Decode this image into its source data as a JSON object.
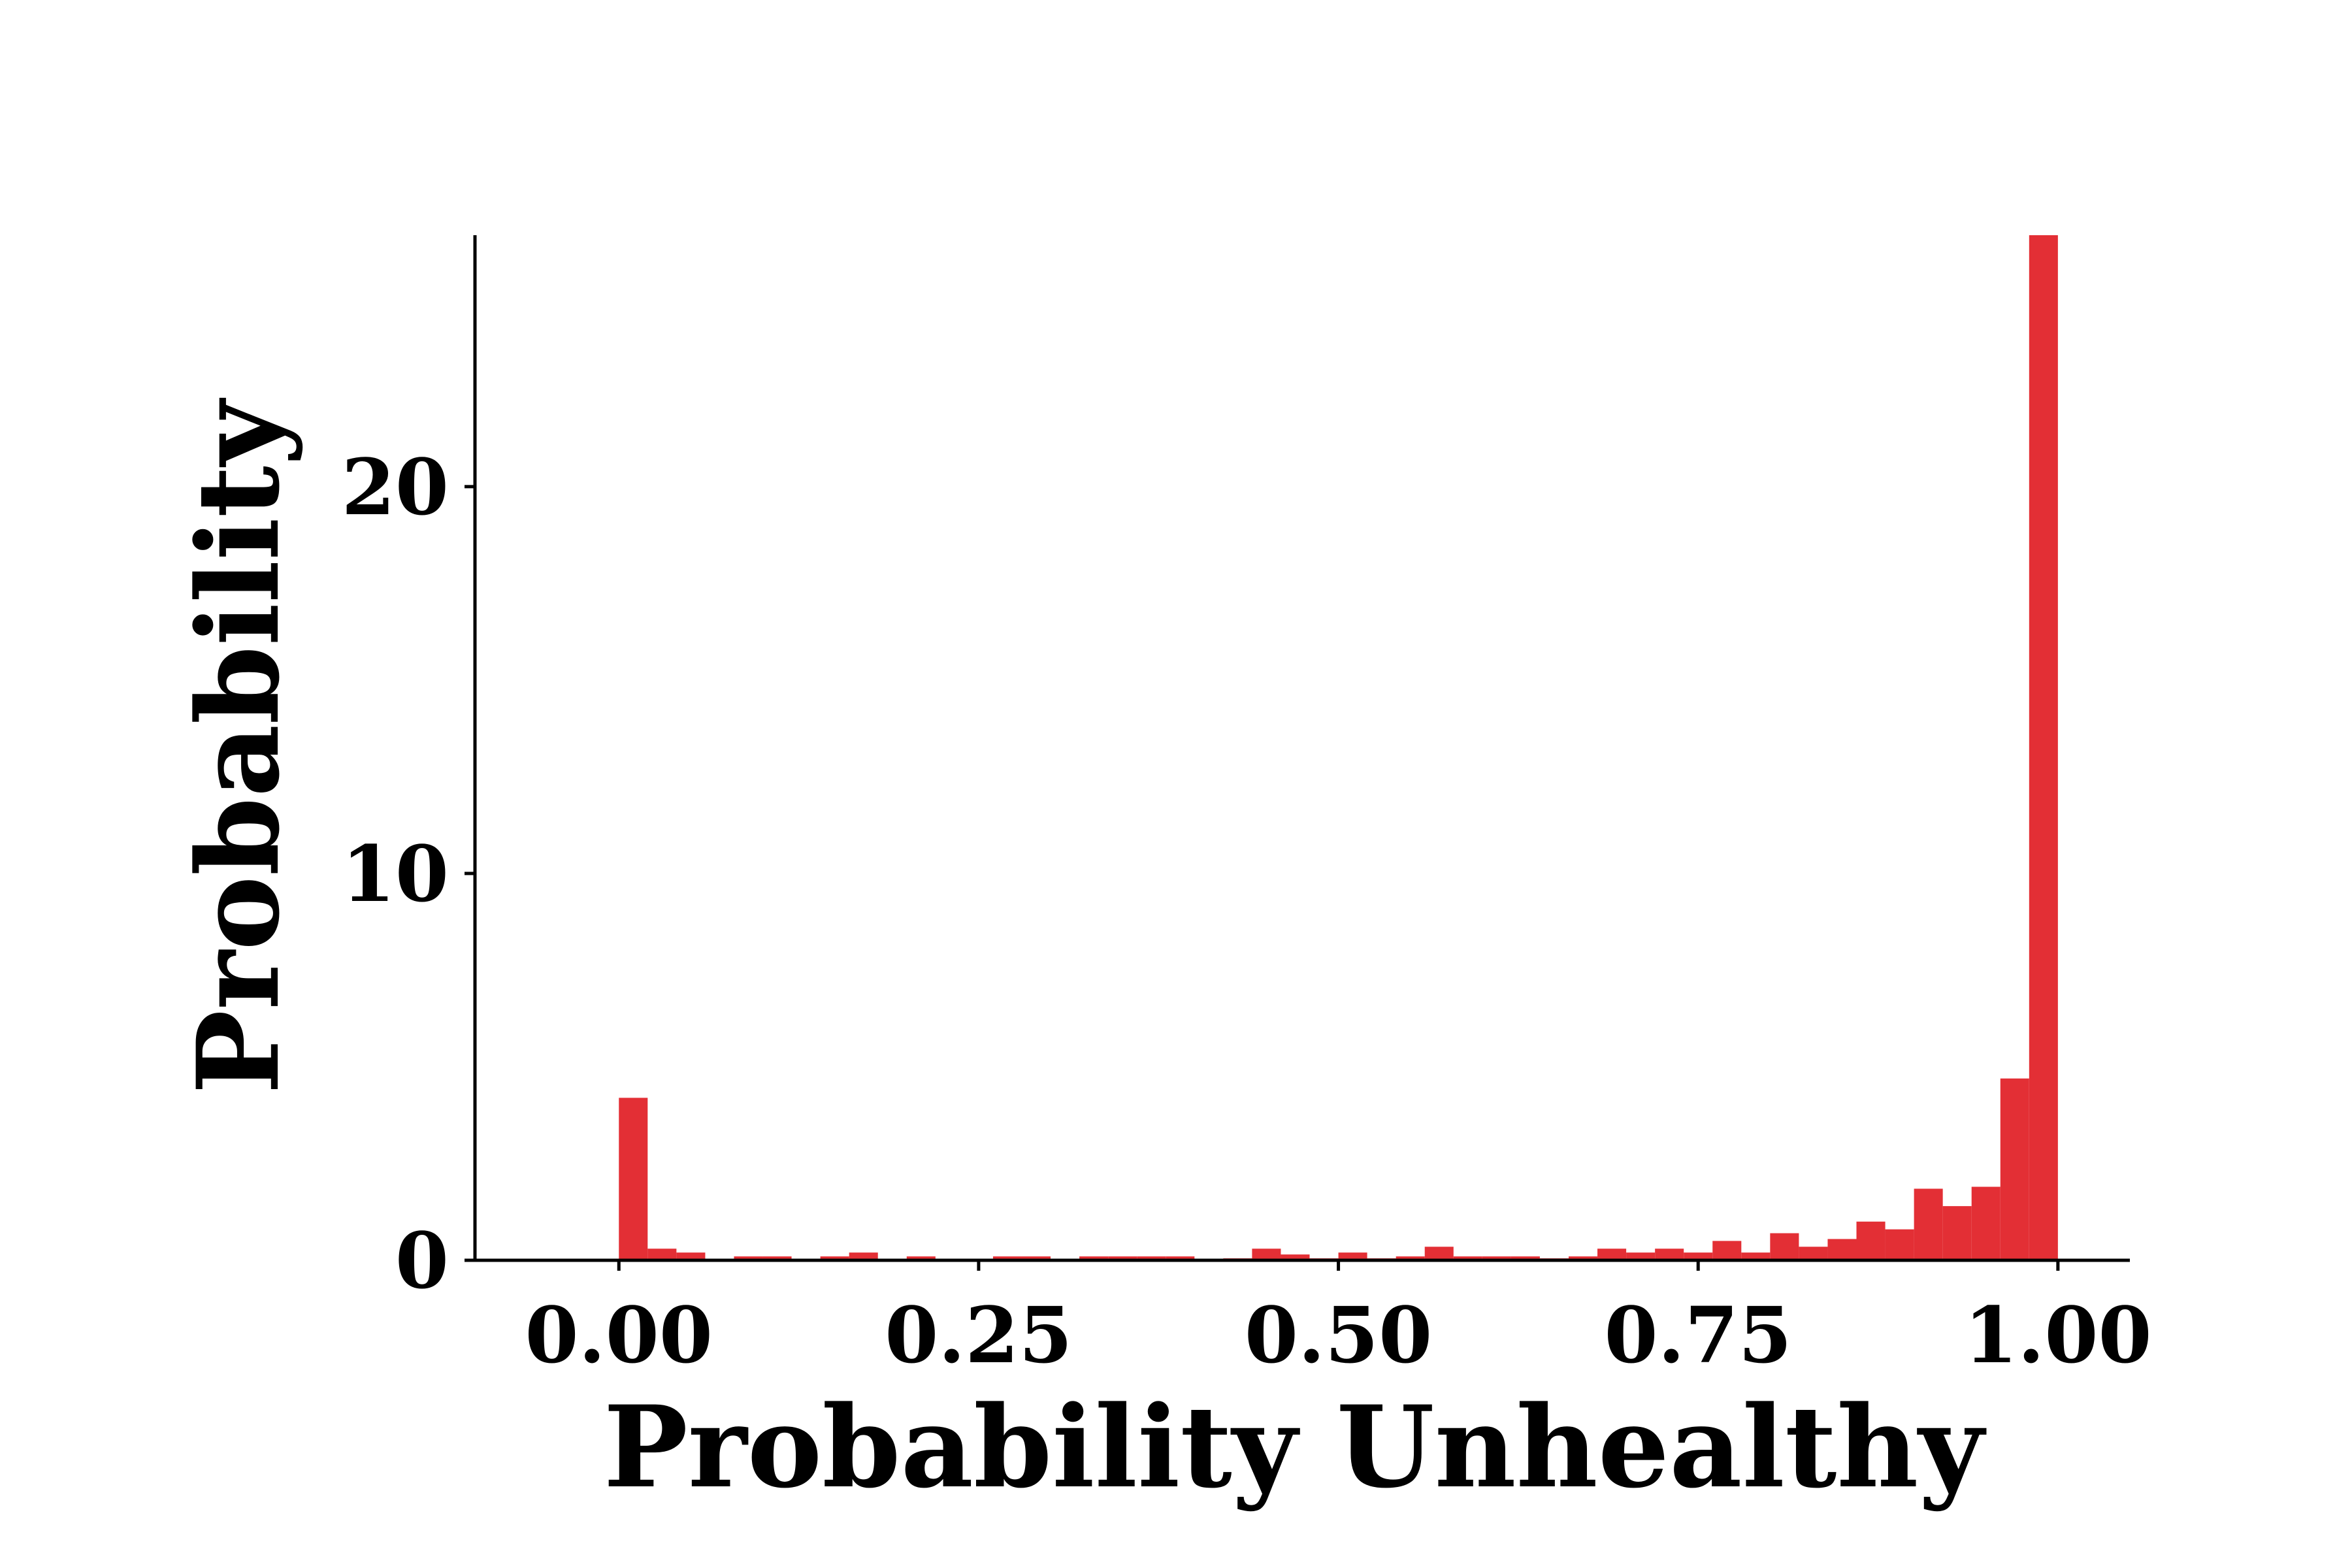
{
  "chart_data": {
    "type": "bar",
    "title": "",
    "xlabel": "Probability Unhealthy",
    "ylabel": "Probability",
    "xlim": [
      -0.1,
      1.05
    ],
    "ylim": [
      0,
      26.5
    ],
    "bin_width": 0.02,
    "x_ticks": [
      0.0,
      0.25,
      0.5,
      0.75,
      1.0
    ],
    "x_tick_labels": [
      "0.00",
      "0.25",
      "0.50",
      "0.75",
      "1.00"
    ],
    "y_ticks": [
      0,
      10,
      20
    ],
    "y_tick_labels": [
      "0",
      "10",
      "20"
    ],
    "grid": false,
    "bar_color": "#e32f35",
    "bins_left": [
      0.0,
      0.02,
      0.04,
      0.06,
      0.08,
      0.1,
      0.12,
      0.14,
      0.16,
      0.18,
      0.2,
      0.22,
      0.24,
      0.26,
      0.28,
      0.3,
      0.32,
      0.34,
      0.36,
      0.38,
      0.4,
      0.42,
      0.44,
      0.46,
      0.48,
      0.5,
      0.52,
      0.54,
      0.56,
      0.58,
      0.6,
      0.62,
      0.64,
      0.66,
      0.68,
      0.7,
      0.72,
      0.74,
      0.76,
      0.78,
      0.8,
      0.82,
      0.84,
      0.86,
      0.88,
      0.9,
      0.92,
      0.94,
      0.96,
      0.98
    ],
    "values": [
      4.2,
      0.3,
      0.2,
      0.0,
      0.1,
      0.1,
      0.0,
      0.1,
      0.2,
      0.0,
      0.1,
      0.0,
      0.0,
      0.1,
      0.1,
      0.0,
      0.1,
      0.1,
      0.1,
      0.1,
      0.0,
      0.05,
      0.3,
      0.15,
      0.05,
      0.2,
      0.05,
      0.1,
      0.35,
      0.1,
      0.1,
      0.1,
      0.05,
      0.1,
      0.3,
      0.2,
      0.3,
      0.2,
      0.5,
      0.2,
      0.7,
      0.35,
      0.55,
      1.0,
      0.8,
      1.85,
      1.4,
      1.9,
      4.7,
      26.5
    ]
  }
}
